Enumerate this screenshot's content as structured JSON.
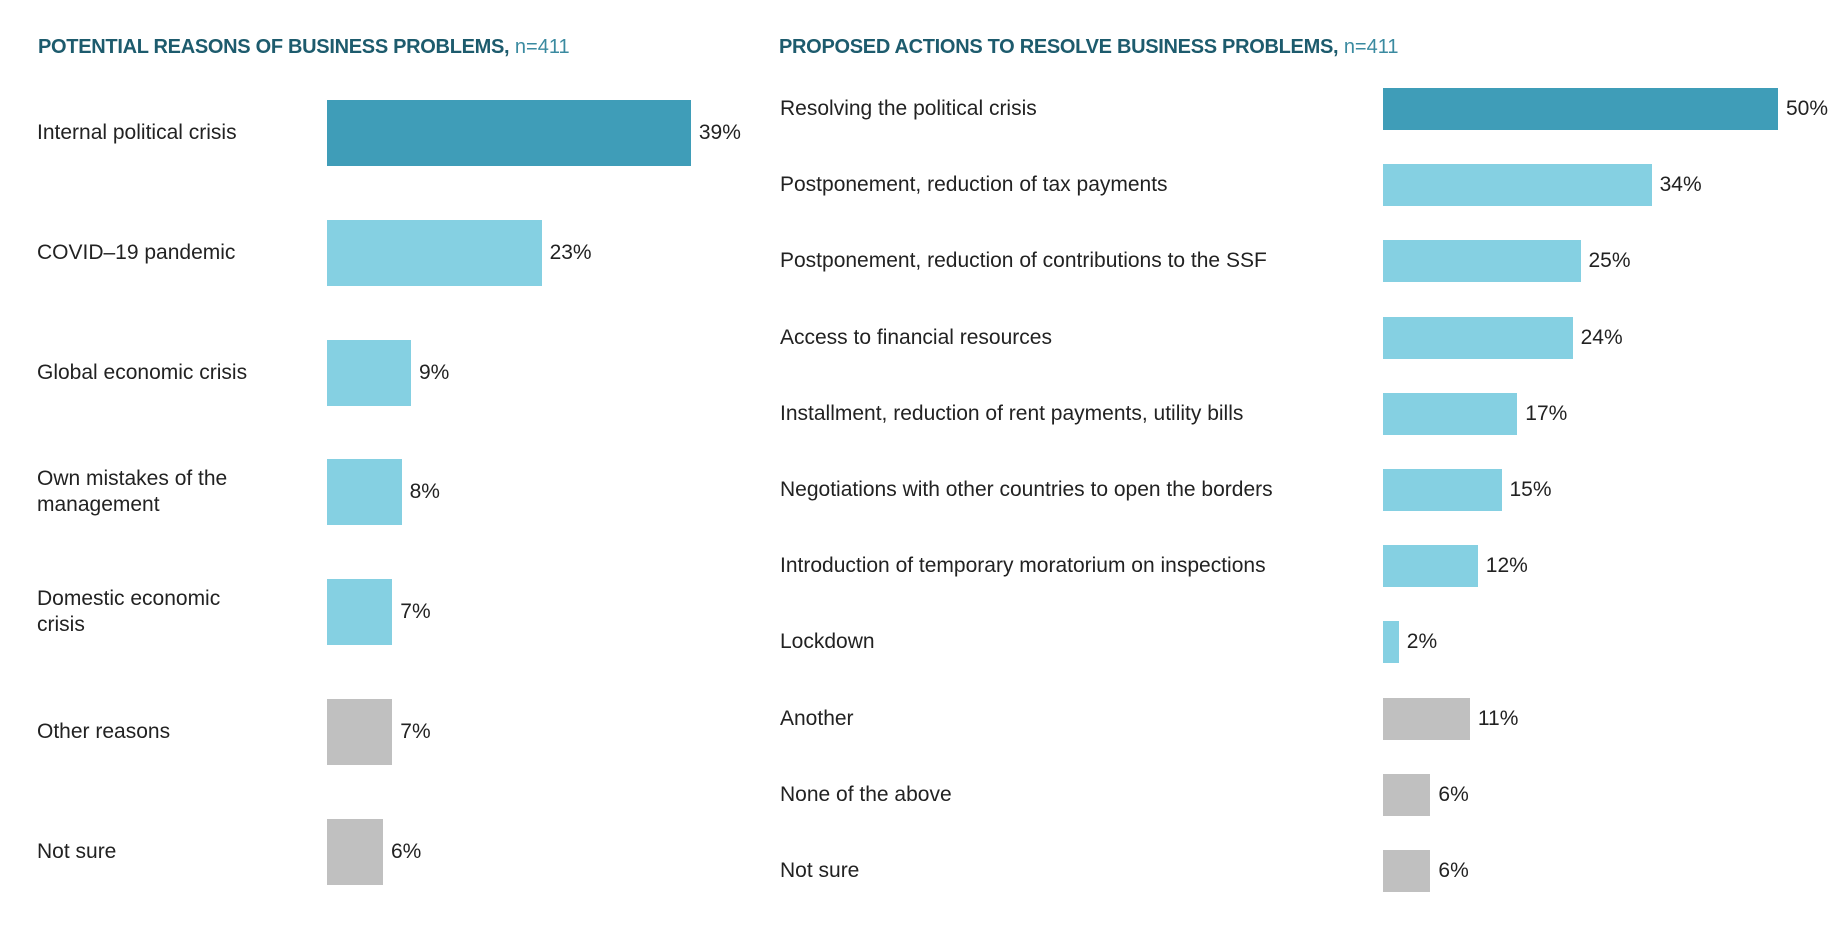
{
  "chart_data": [
    {
      "type": "bar",
      "orientation": "horizontal",
      "title": "POTENTIAL REASONS OF BUSINESS PROBLEMS,",
      "subtitle": "n=411",
      "categories": [
        "Internal political crisis",
        "COVID–19 pandemic",
        "Global economic crisis",
        "Own mistakes of the management",
        "Domestic economic crisis",
        "Other reasons",
        "Not sure"
      ],
      "values": [
        39,
        23,
        9,
        8,
        7,
        7,
        6
      ],
      "labels": [
        "39%",
        "23%",
        "9%",
        "8%",
        "7%",
        "7%",
        "6%"
      ],
      "bar_colors": [
        "#3f9db8",
        "#85d0e2",
        "#85d0e2",
        "#85d0e2",
        "#85d0e2",
        "#c0c0c0",
        "#c0c0c0"
      ],
      "unit": "%",
      "grid": false
    },
    {
      "type": "bar",
      "orientation": "horizontal",
      "title": "PROPOSED ACTIONS TO RESOLVE BUSINESS PROBLEMS,",
      "subtitle": "n=411",
      "categories": [
        "Resolving the political crisis",
        "Postponement, reduction of tax payments",
        "Postponement, reduction of contributions to the SSF",
        "Access to financial resources",
        "Installment, reduction of rent payments, utility bills",
        "Negotiations with other countries to open the borders",
        "Introduction of temporary moratorium on inspections",
        "Lockdown",
        "Another",
        "None of the above",
        "Not sure"
      ],
      "values": [
        50,
        34,
        25,
        24,
        17,
        15,
        12,
        2,
        11,
        6,
        6
      ],
      "labels": [
        "50%",
        "34%",
        "25%",
        "24%",
        "17%",
        "15%",
        "12%",
        "2%",
        "11%",
        "6%",
        "6%"
      ],
      "bar_colors": [
        "#3f9db8",
        "#85d0e2",
        "#85d0e2",
        "#85d0e2",
        "#85d0e2",
        "#85d0e2",
        "#85d0e2",
        "#85d0e2",
        "#c0c0c0",
        "#c0c0c0",
        "#c0c0c0"
      ],
      "unit": "%",
      "grid": false
    }
  ]
}
